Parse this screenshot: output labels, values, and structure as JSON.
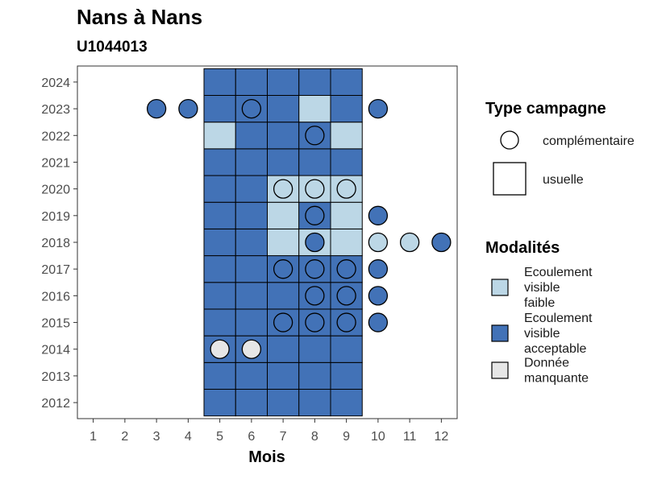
{
  "chart_data": {
    "type": "heatmap",
    "title": "Nans à Nans",
    "subtitle": "U1044013",
    "xlabel": "Mois",
    "ylabel": "",
    "x_ticks": [
      "1",
      "2",
      "3",
      "4",
      "5",
      "6",
      "7",
      "8",
      "9",
      "10",
      "11",
      "12"
    ],
    "y_ticks": [
      "2012",
      "2013",
      "2014",
      "2015",
      "2016",
      "2017",
      "2018",
      "2019",
      "2020",
      "2021",
      "2022",
      "2023",
      "2024"
    ],
    "xlim": [
      0.5,
      12.5
    ],
    "ylim": [
      2011.4,
      2024.6
    ],
    "grid": false,
    "colors": {
      "Ecoulement visible faible": "#bcd7e6",
      "Ecoulement visible acceptable": "#4272b7",
      "Donnée manquante": "#e6e6e6"
    },
    "legend_placement": "right",
    "legends": [
      {
        "title": "Type campagne",
        "items": [
          {
            "label": "complémentaire",
            "shape": "circle"
          },
          {
            "label": "usuelle",
            "shape": "square"
          }
        ]
      },
      {
        "title": "Modalités",
        "items": [
          {
            "label": "Ecoulement visible faible",
            "lines": [
              "Ecoulement",
              "visible",
              "faible"
            ]
          },
          {
            "label": "Ecoulement visible acceptable",
            "lines": [
              "Ecoulement",
              "visible",
              "acceptable"
            ]
          },
          {
            "label": "Donnée manquante",
            "lines": [
              "Donnée",
              "manquante"
            ]
          }
        ]
      }
    ],
    "series": [
      {
        "name": "usuelle",
        "shape": "square",
        "points": [
          {
            "month": 5,
            "year": 2012,
            "modalite": "Ecoulement visible acceptable"
          },
          {
            "month": 6,
            "year": 2012,
            "modalite": "Ecoulement visible acceptable"
          },
          {
            "month": 7,
            "year": 2012,
            "modalite": "Ecoulement visible acceptable"
          },
          {
            "month": 8,
            "year": 2012,
            "modalite": "Ecoulement visible acceptable"
          },
          {
            "month": 9,
            "year": 2012,
            "modalite": "Ecoulement visible acceptable"
          },
          {
            "month": 5,
            "year": 2013,
            "modalite": "Ecoulement visible acceptable"
          },
          {
            "month": 6,
            "year": 2013,
            "modalite": "Ecoulement visible acceptable"
          },
          {
            "month": 7,
            "year": 2013,
            "modalite": "Ecoulement visible acceptable"
          },
          {
            "month": 8,
            "year": 2013,
            "modalite": "Ecoulement visible acceptable"
          },
          {
            "month": 9,
            "year": 2013,
            "modalite": "Ecoulement visible acceptable"
          },
          {
            "month": 5,
            "year": 2014,
            "modalite": "Ecoulement visible acceptable"
          },
          {
            "month": 6,
            "year": 2014,
            "modalite": "Ecoulement visible acceptable"
          },
          {
            "month": 7,
            "year": 2014,
            "modalite": "Ecoulement visible acceptable"
          },
          {
            "month": 8,
            "year": 2014,
            "modalite": "Ecoulement visible acceptable"
          },
          {
            "month": 9,
            "year": 2014,
            "modalite": "Ecoulement visible acceptable"
          },
          {
            "month": 5,
            "year": 2015,
            "modalite": "Ecoulement visible acceptable"
          },
          {
            "month": 6,
            "year": 2015,
            "modalite": "Ecoulement visible acceptable"
          },
          {
            "month": 7,
            "year": 2015,
            "modalite": "Ecoulement visible acceptable"
          },
          {
            "month": 8,
            "year": 2015,
            "modalite": "Ecoulement visible acceptable"
          },
          {
            "month": 9,
            "year": 2015,
            "modalite": "Ecoulement visible acceptable"
          },
          {
            "month": 5,
            "year": 2016,
            "modalite": "Ecoulement visible acceptable"
          },
          {
            "month": 6,
            "year": 2016,
            "modalite": "Ecoulement visible acceptable"
          },
          {
            "month": 7,
            "year": 2016,
            "modalite": "Ecoulement visible acceptable"
          },
          {
            "month": 8,
            "year": 2016,
            "modalite": "Ecoulement visible acceptable"
          },
          {
            "month": 9,
            "year": 2016,
            "modalite": "Ecoulement visible acceptable"
          },
          {
            "month": 5,
            "year": 2017,
            "modalite": "Ecoulement visible acceptable"
          },
          {
            "month": 6,
            "year": 2017,
            "modalite": "Ecoulement visible acceptable"
          },
          {
            "month": 7,
            "year": 2017,
            "modalite": "Ecoulement visible acceptable"
          },
          {
            "month": 8,
            "year": 2017,
            "modalite": "Ecoulement visible acceptable"
          },
          {
            "month": 9,
            "year": 2017,
            "modalite": "Ecoulement visible acceptable"
          },
          {
            "month": 5,
            "year": 2018,
            "modalite": "Ecoulement visible acceptable"
          },
          {
            "month": 6,
            "year": 2018,
            "modalite": "Ecoulement visible acceptable"
          },
          {
            "month": 7,
            "year": 2018,
            "modalite": "Ecoulement visible faible"
          },
          {
            "month": 8,
            "year": 2018,
            "modalite": "Ecoulement visible faible"
          },
          {
            "month": 9,
            "year": 2018,
            "modalite": "Ecoulement visible faible"
          },
          {
            "month": 5,
            "year": 2019,
            "modalite": "Ecoulement visible acceptable"
          },
          {
            "month": 6,
            "year": 2019,
            "modalite": "Ecoulement visible acceptable"
          },
          {
            "month": 7,
            "year": 2019,
            "modalite": "Ecoulement visible faible"
          },
          {
            "month": 8,
            "year": 2019,
            "modalite": "Ecoulement visible acceptable"
          },
          {
            "month": 9,
            "year": 2019,
            "modalite": "Ecoulement visible faible"
          },
          {
            "month": 5,
            "year": 2020,
            "modalite": "Ecoulement visible acceptable"
          },
          {
            "month": 6,
            "year": 2020,
            "modalite": "Ecoulement visible acceptable"
          },
          {
            "month": 7,
            "year": 2020,
            "modalite": "Ecoulement visible faible"
          },
          {
            "month": 8,
            "year": 2020,
            "modalite": "Ecoulement visible faible"
          },
          {
            "month": 9,
            "year": 2020,
            "modalite": "Ecoulement visible faible"
          },
          {
            "month": 5,
            "year": 2021,
            "modalite": "Ecoulement visible acceptable"
          },
          {
            "month": 6,
            "year": 2021,
            "modalite": "Ecoulement visible acceptable"
          },
          {
            "month": 7,
            "year": 2021,
            "modalite": "Ecoulement visible acceptable"
          },
          {
            "month": 8,
            "year": 2021,
            "modalite": "Ecoulement visible acceptable"
          },
          {
            "month": 9,
            "year": 2021,
            "modalite": "Ecoulement visible acceptable"
          },
          {
            "month": 5,
            "year": 2022,
            "modalite": "Ecoulement visible faible"
          },
          {
            "month": 6,
            "year": 2022,
            "modalite": "Ecoulement visible acceptable"
          },
          {
            "month": 7,
            "year": 2022,
            "modalite": "Ecoulement visible acceptable"
          },
          {
            "month": 8,
            "year": 2022,
            "modalite": "Ecoulement visible acceptable"
          },
          {
            "month": 9,
            "year": 2022,
            "modalite": "Ecoulement visible faible"
          },
          {
            "month": 5,
            "year": 2023,
            "modalite": "Ecoulement visible acceptable"
          },
          {
            "month": 6,
            "year": 2023,
            "modalite": "Ecoulement visible acceptable"
          },
          {
            "month": 7,
            "year": 2023,
            "modalite": "Ecoulement visible acceptable"
          },
          {
            "month": 8,
            "year": 2023,
            "modalite": "Ecoulement visible faible"
          },
          {
            "month": 9,
            "year": 2023,
            "modalite": "Ecoulement visible acceptable"
          },
          {
            "month": 5,
            "year": 2024,
            "modalite": "Ecoulement visible acceptable"
          },
          {
            "month": 6,
            "year": 2024,
            "modalite": "Ecoulement visible acceptable"
          },
          {
            "month": 7,
            "year": 2024,
            "modalite": "Ecoulement visible acceptable"
          },
          {
            "month": 8,
            "year": 2024,
            "modalite": "Ecoulement visible acceptable"
          },
          {
            "month": 9,
            "year": 2024,
            "modalite": "Ecoulement visible acceptable"
          }
        ]
      },
      {
        "name": "complémentaire",
        "shape": "circle",
        "points": [
          {
            "month": 5,
            "year": 2014,
            "modalite": "Donnée manquante"
          },
          {
            "month": 6,
            "year": 2014,
            "modalite": "Donnée manquante"
          },
          {
            "month": 7,
            "year": 2015,
            "modalite": "Ecoulement visible acceptable"
          },
          {
            "month": 8,
            "year": 2015,
            "modalite": "Ecoulement visible acceptable"
          },
          {
            "month": 9,
            "year": 2015,
            "modalite": "Ecoulement visible acceptable"
          },
          {
            "month": 10,
            "year": 2015,
            "modalite": "Ecoulement visible acceptable"
          },
          {
            "month": 8,
            "year": 2016,
            "modalite": "Ecoulement visible acceptable"
          },
          {
            "month": 9,
            "year": 2016,
            "modalite": "Ecoulement visible acceptable"
          },
          {
            "month": 10,
            "year": 2016,
            "modalite": "Ecoulement visible acceptable"
          },
          {
            "month": 7,
            "year": 2017,
            "modalite": "Ecoulement visible acceptable"
          },
          {
            "month": 8,
            "year": 2017,
            "modalite": "Ecoulement visible acceptable"
          },
          {
            "month": 9,
            "year": 2017,
            "modalite": "Ecoulement visible acceptable"
          },
          {
            "month": 10,
            "year": 2017,
            "modalite": "Ecoulement visible acceptable"
          },
          {
            "month": 8,
            "year": 2018,
            "modalite": "Ecoulement visible acceptable"
          },
          {
            "month": 10,
            "year": 2018,
            "modalite": "Ecoulement visible faible"
          },
          {
            "month": 11,
            "year": 2018,
            "modalite": "Ecoulement visible faible"
          },
          {
            "month": 12,
            "year": 2018,
            "modalite": "Ecoulement visible acceptable"
          },
          {
            "month": 8,
            "year": 2019,
            "modalite": "Ecoulement visible acceptable"
          },
          {
            "month": 10,
            "year": 2019,
            "modalite": "Ecoulement visible acceptable"
          },
          {
            "month": 7,
            "year": 2020,
            "modalite": "Ecoulement visible faible"
          },
          {
            "month": 8,
            "year": 2020,
            "modalite": "Ecoulement visible faible"
          },
          {
            "month": 9,
            "year": 2020,
            "modalite": "Ecoulement visible faible"
          },
          {
            "month": 8,
            "year": 2022,
            "modalite": "Ecoulement visible acceptable"
          },
          {
            "month": 3,
            "year": 2023,
            "modalite": "Ecoulement visible acceptable"
          },
          {
            "month": 4,
            "year": 2023,
            "modalite": "Ecoulement visible acceptable"
          },
          {
            "month": 6,
            "year": 2023,
            "modalite": "Ecoulement visible acceptable"
          },
          {
            "month": 10,
            "year": 2023,
            "modalite": "Ecoulement visible acceptable"
          }
        ]
      }
    ]
  }
}
